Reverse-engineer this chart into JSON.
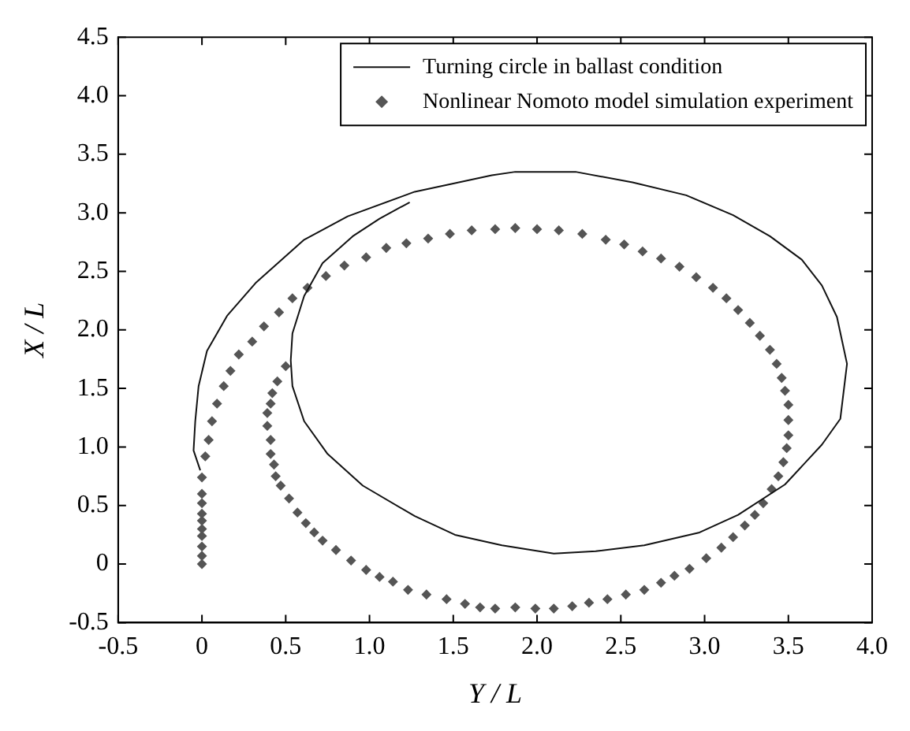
{
  "chart_data": {
    "type": "scatter",
    "xlabel": "Y / L",
    "ylabel": "X / L",
    "xlim": [
      -0.5,
      4.0
    ],
    "xticks": [
      -0.5,
      0,
      0.5,
      {
        "value": 1,
        "label": "1.0"
      },
      1.5,
      {
        "value": 2,
        "label": "2.0"
      },
      2.5,
      {
        "value": 3,
        "label": "3.0"
      },
      3.5,
      {
        "value": 4,
        "label": "4.0"
      }
    ],
    "ylim": [
      -0.5,
      4.5
    ],
    "yticks": [
      -0.5,
      0,
      0.5,
      {
        "value": 1,
        "label": "1.0"
      },
      1.5,
      {
        "value": 2,
        "label": "2.0"
      },
      2.5,
      {
        "value": 3,
        "label": "3.0"
      },
      3.5,
      {
        "value": 4,
        "label": "4.0"
      },
      4.5
    ],
    "legend": "top right",
    "grid": false,
    "series": [
      {
        "name": "Turning circle in ballast condition",
        "type": "line",
        "marker": "none",
        "color": "#111111",
        "x": [
          -0.01,
          -0.05,
          -0.04,
          -0.02,
          0.03,
          0.15,
          0.32,
          0.61,
          0.87,
          1.27,
          1.73,
          1.87,
          2.23,
          2.57,
          2.89,
          3.17,
          3.39,
          3.58,
          3.7,
          3.79,
          3.85,
          3.81,
          3.7,
          3.48,
          3.2,
          2.97,
          2.64,
          2.35,
          2.1,
          1.79,
          1.51,
          1.27,
          0.96,
          0.75,
          0.61,
          0.54,
          0.53,
          0.54,
          0.61,
          0.72,
          0.9,
          1.06,
          1.24
        ],
        "values": [
          0.8,
          0.97,
          1.22,
          1.52,
          1.82,
          2.12,
          2.4,
          2.77,
          2.97,
          3.18,
          3.32,
          3.35,
          3.35,
          3.26,
          3.15,
          2.98,
          2.8,
          2.6,
          2.38,
          2.11,
          1.71,
          1.24,
          1.02,
          0.68,
          0.42,
          0.27,
          0.16,
          0.11,
          0.09,
          0.16,
          0.25,
          0.41,
          0.67,
          0.94,
          1.22,
          1.52,
          1.74,
          1.97,
          2.29,
          2.57,
          2.8,
          2.95,
          3.09
        ]
      },
      {
        "name": "Nonlinear Nomoto model simulation experiment",
        "type": "scatter",
        "marker": "diamond",
        "color": "#555555",
        "x": [
          0,
          0,
          0,
          0,
          0,
          0,
          0,
          0,
          0,
          0,
          0.02,
          0.04,
          0.06,
          0.09,
          0.13,
          0.17,
          0.22,
          0.3,
          0.37,
          0.46,
          0.54,
          0.63,
          0.74,
          0.85,
          0.98,
          1.1,
          1.22,
          1.35,
          1.48,
          1.61,
          1.75,
          1.87,
          2.0,
          2.13,
          2.27,
          2.41,
          2.52,
          2.63,
          2.74,
          2.85,
          2.95,
          3.05,
          3.13,
          3.2,
          3.27,
          3.33,
          3.39,
          3.43,
          3.46,
          3.48,
          3.5,
          3.5,
          3.5,
          3.49,
          3.47,
          3.44,
          3.4,
          3.35,
          3.3,
          3.24,
          3.17,
          3.1,
          3.01,
          2.91,
          2.82,
          2.74,
          2.64,
          2.53,
          2.42,
          2.31,
          2.21,
          2.1,
          1.99,
          1.87,
          1.75,
          1.66,
          1.57,
          1.46,
          1.34,
          1.23,
          1.14,
          1.06,
          0.98,
          0.89,
          0.8,
          0.72,
          0.67,
          0.62,
          0.57,
          0.52,
          0.47,
          0.44,
          0.43,
          0.41,
          0.41,
          0.39,
          0.39,
          0.41,
          0.42,
          0.45,
          0.5
        ],
        "values": [
          0,
          0.07,
          0.15,
          0.24,
          0.3,
          0.37,
          0.43,
          0.52,
          0.6,
          0.74,
          0.92,
          1.06,
          1.22,
          1.37,
          1.52,
          1.65,
          1.79,
          1.9,
          2.03,
          2.15,
          2.27,
          2.36,
          2.46,
          2.55,
          2.62,
          2.7,
          2.74,
          2.78,
          2.82,
          2.85,
          2.86,
          2.87,
          2.86,
          2.85,
          2.82,
          2.77,
          2.73,
          2.67,
          2.61,
          2.54,
          2.45,
          2.36,
          2.27,
          2.17,
          2.06,
          1.95,
          1.83,
          1.71,
          1.59,
          1.48,
          1.36,
          1.23,
          1.1,
          0.99,
          0.87,
          0.75,
          0.64,
          0.52,
          0.42,
          0.33,
          0.23,
          0.14,
          0.05,
          -0.04,
          -0.1,
          -0.16,
          -0.22,
          -0.26,
          -0.3,
          -0.33,
          -0.36,
          -0.38,
          -0.38,
          -0.37,
          -0.38,
          -0.37,
          -0.34,
          -0.3,
          -0.26,
          -0.22,
          -0.15,
          -0.11,
          -0.05,
          0.03,
          0.12,
          0.2,
          0.27,
          0.35,
          0.44,
          0.56,
          0.67,
          0.75,
          0.85,
          0.94,
          1.06,
          1.18,
          1.29,
          1.37,
          1.46,
          1.56,
          1.69
        ]
      }
    ]
  }
}
